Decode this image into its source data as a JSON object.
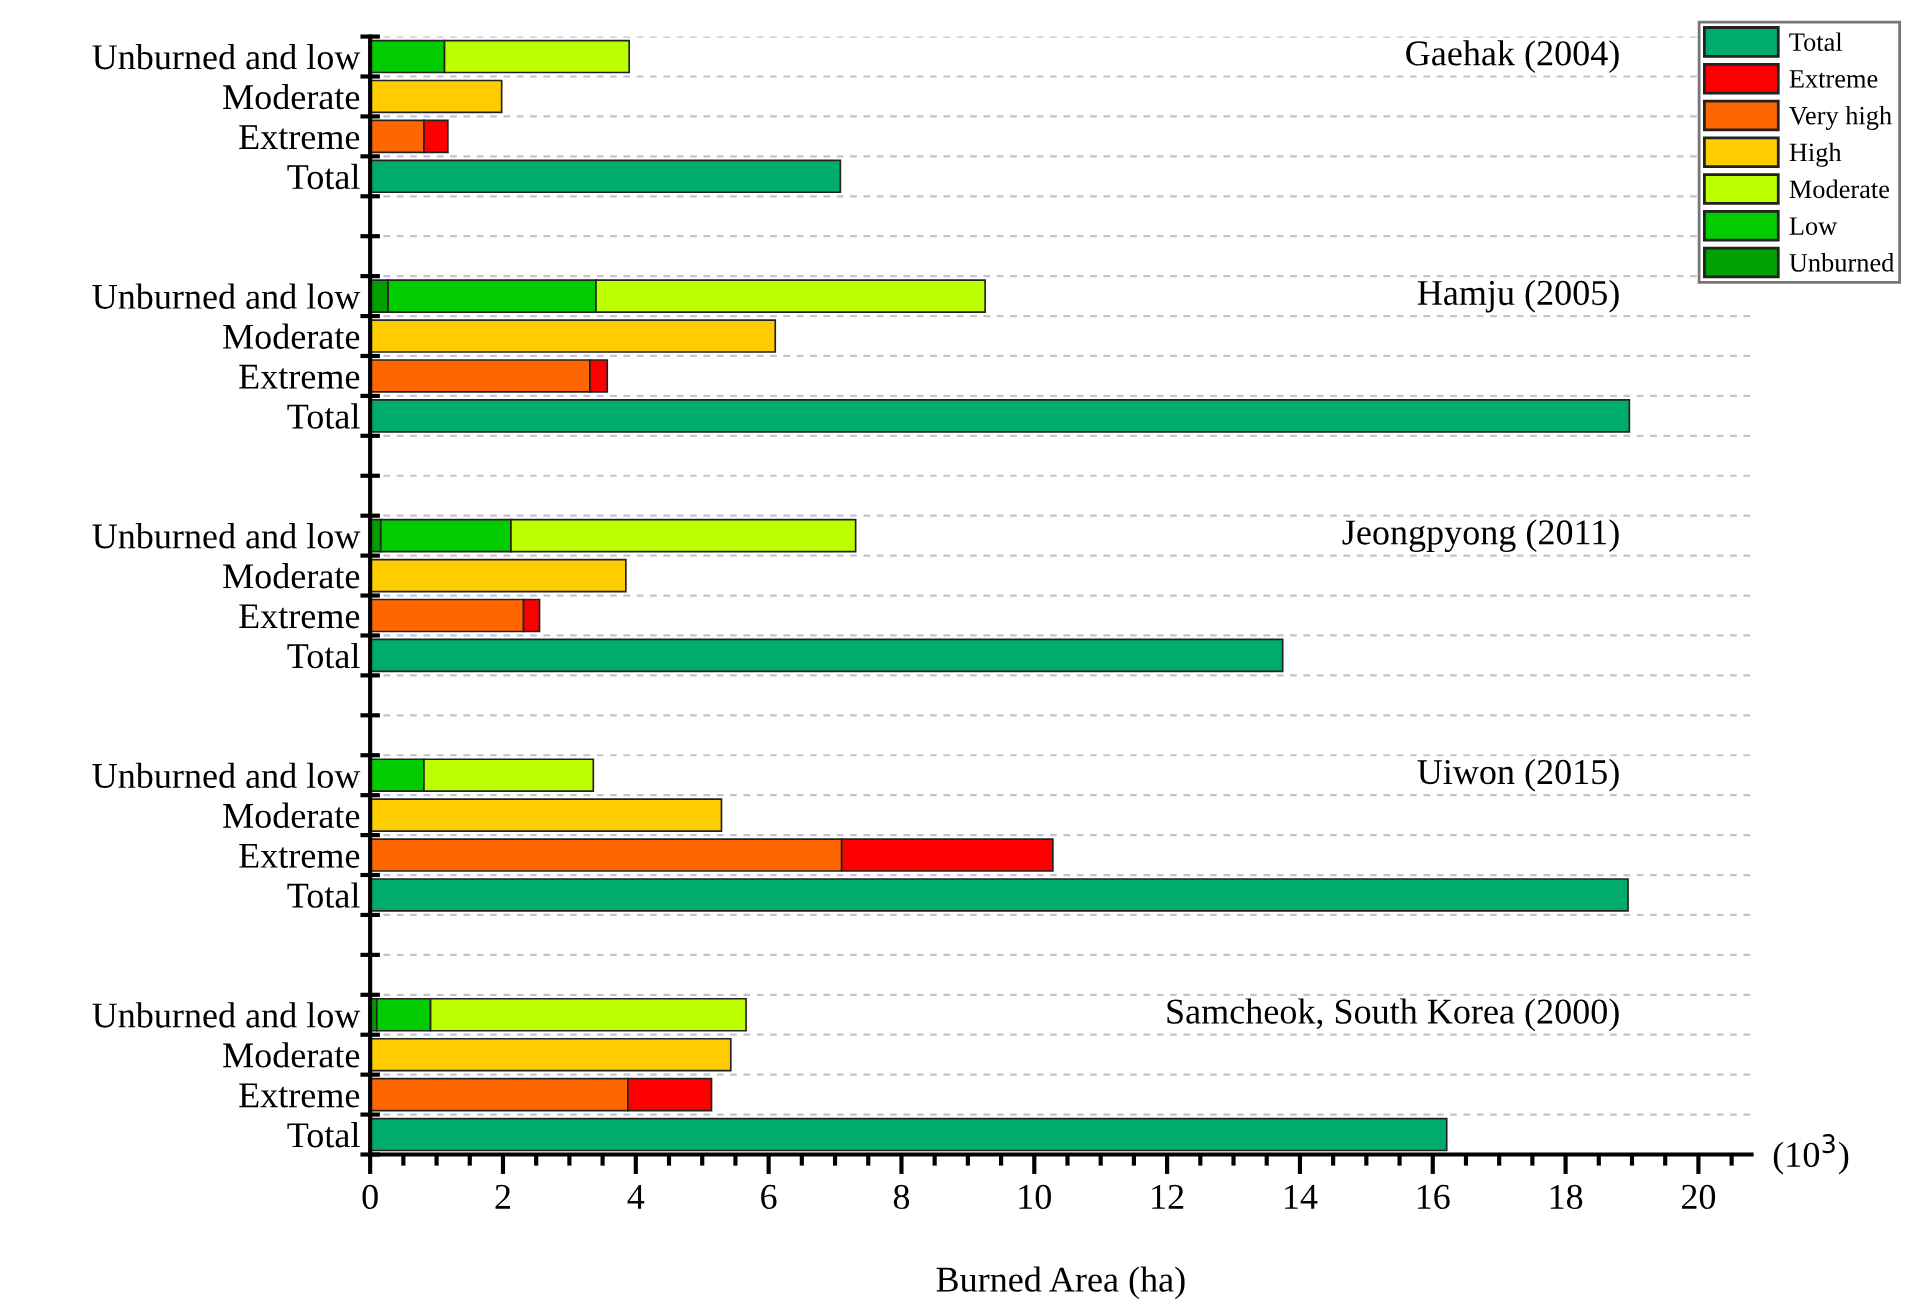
{
  "chart_data": {
    "type": "bar",
    "orientation": "horizontal",
    "stacked": true,
    "xlabel": "Burned Area (ha)",
    "categories": [
      "Unburned and low",
      "Moderate",
      "Extreme",
      "Total",
      null,
      null,
      "Unburned and low",
      "Moderate",
      "Extreme",
      "Total",
      null,
      null,
      "Unburned and low",
      "Moderate",
      "Extreme",
      "Total",
      null,
      null,
      "Unburned and low",
      "Moderate",
      "Extreme",
      "Total",
      null,
      null,
      "Unburned and low",
      "Moderate",
      "Extreme",
      "Total"
    ],
    "series": [
      {
        "name": "Unburned",
        "color": "#00a000",
        "values": [
          null,
          null,
          null,
          null,
          null,
          null,
          0.27,
          null,
          null,
          null,
          null,
          null,
          0.16,
          null,
          null,
          null,
          null,
          null,
          null,
          null,
          null,
          null,
          null,
          null,
          0.1,
          null,
          null,
          null
        ]
      },
      {
        "name": "Low",
        "color": "#00cc00",
        "values": [
          1.12,
          null,
          null,
          null,
          null,
          null,
          3.13,
          null,
          null,
          null,
          null,
          null,
          1.96,
          null,
          null,
          null,
          null,
          null,
          0.81,
          null,
          null,
          null,
          null,
          null,
          0.81,
          null,
          null,
          null
        ]
      },
      {
        "name": "Moderate",
        "color": "#bbff00",
        "values": [
          2.78,
          null,
          null,
          null,
          null,
          null,
          5.86,
          null,
          null,
          null,
          null,
          null,
          5.19,
          null,
          null,
          null,
          null,
          null,
          2.55,
          null,
          null,
          null,
          null,
          null,
          4.75,
          null,
          null,
          null
        ]
      },
      {
        "name": "High",
        "color": "#ffcc00",
        "values": [
          null,
          1.98,
          null,
          null,
          null,
          null,
          null,
          6.1,
          null,
          null,
          null,
          null,
          null,
          3.85,
          null,
          null,
          null,
          null,
          null,
          5.29,
          null,
          null,
          null,
          null,
          null,
          5.43,
          null,
          null
        ]
      },
      {
        "name": "Very high",
        "color": "#ff6600",
        "values": [
          null,
          null,
          0.81,
          null,
          null,
          null,
          null,
          null,
          3.31,
          null,
          null,
          null,
          null,
          null,
          2.31,
          null,
          null,
          null,
          null,
          null,
          7.1,
          null,
          null,
          null,
          null,
          null,
          3.88,
          null
        ]
      },
      {
        "name": "Extreme",
        "color": "#ff0000",
        "values": [
          null,
          null,
          0.36,
          null,
          null,
          null,
          null,
          null,
          0.26,
          null,
          null,
          null,
          null,
          null,
          0.24,
          null,
          null,
          null,
          null,
          null,
          3.18,
          null,
          null,
          null,
          null,
          null,
          1.26,
          null
        ]
      },
      {
        "name": "Total",
        "color": "#00ac6c",
        "values": [
          null,
          null,
          null,
          7.08,
          null,
          null,
          null,
          null,
          null,
          18.96,
          null,
          null,
          null,
          null,
          null,
          13.74,
          null,
          null,
          null,
          null,
          null,
          18.94,
          null,
          null,
          null,
          null,
          null,
          16.21
        ]
      }
    ],
    "xlim": [
      0,
      20.8
    ],
    "xticks": [
      0,
      {
        "value": 0.5,
        "label": null
      },
      {
        "value": 1,
        "label": null
      },
      {
        "value": 1.5,
        "label": null
      },
      2,
      {
        "value": 2.5,
        "label": null
      },
      {
        "value": 3,
        "label": null
      },
      {
        "value": 3.5,
        "label": null
      },
      4,
      {
        "value": 4.5,
        "label": null
      },
      {
        "value": 5,
        "label": null
      },
      {
        "value": 5.5,
        "label": null
      },
      6,
      {
        "value": 6.5,
        "label": null
      },
      {
        "value": 7,
        "label": null
      },
      {
        "value": 7.5,
        "label": null
      },
      8,
      {
        "value": 8.5,
        "label": null
      },
      {
        "value": 9,
        "label": null
      },
      {
        "value": 9.5,
        "label": null
      },
      10,
      {
        "value": 10.5,
        "label": null
      },
      {
        "value": 11,
        "label": null
      },
      {
        "value": 11.5,
        "label": null
      },
      12,
      {
        "value": 12.5,
        "label": null
      },
      {
        "value": 13,
        "label": null
      },
      {
        "value": 13.5,
        "label": null
      },
      14,
      {
        "value": 14.5,
        "label": null
      },
      {
        "value": 15,
        "label": null
      },
      {
        "value": 15.5,
        "label": null
      },
      16,
      {
        "value": 16.5,
        "label": null
      },
      {
        "value": 17,
        "label": null
      },
      {
        "value": 17.5,
        "label": null
      },
      18,
      {
        "value": 18.5,
        "label": null
      },
      {
        "value": 19,
        "label": null
      },
      {
        "value": 19.5,
        "label": null
      },
      20,
      {
        "value": 20.5,
        "label": null
      }
    ],
    "grid": "y",
    "legend": "top right",
    "annotations": [
      "Gaehak (2004)",
      "Hamju (2005)",
      "Jeongpyong (2011)",
      "Uiwon (2015)",
      "Samcheok, South Korea (2000)",
      "(10$^{3}$)"
    ]
  }
}
